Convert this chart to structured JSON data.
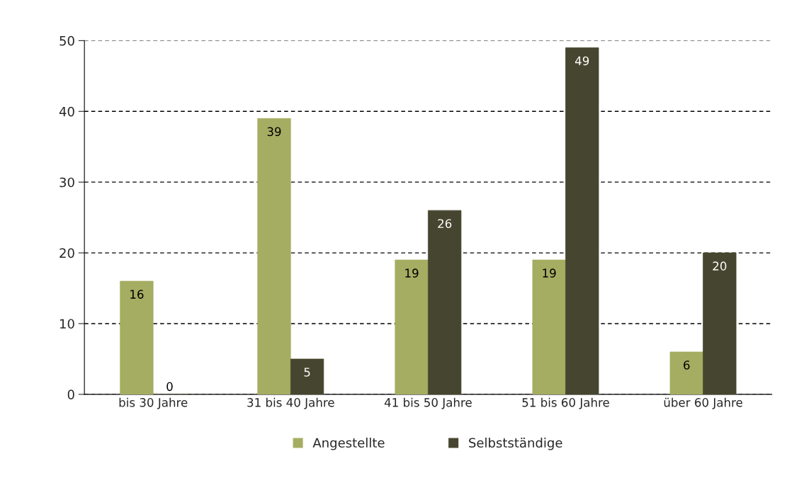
{
  "chart_data": {
    "type": "bar",
    "categories": [
      "bis 30 Jahre",
      "31 bis 40 Jahre",
      "41 bis 50 Jahre",
      "51 bis 60 Jahre",
      "über 60 Jahre"
    ],
    "series": [
      {
        "name": "Angestellte",
        "color": "#a5ad62",
        "values": [
          16,
          39,
          19,
          19,
          6
        ]
      },
      {
        "name": "Selbstständige",
        "color": "#46452f",
        "values": [
          0,
          5,
          26,
          49,
          20
        ]
      }
    ],
    "ylim": [
      0,
      50
    ],
    "yticks": [
      0,
      10,
      20,
      30,
      40,
      50
    ],
    "grid": "y",
    "legend": "bottom",
    "data_labels": true
  }
}
